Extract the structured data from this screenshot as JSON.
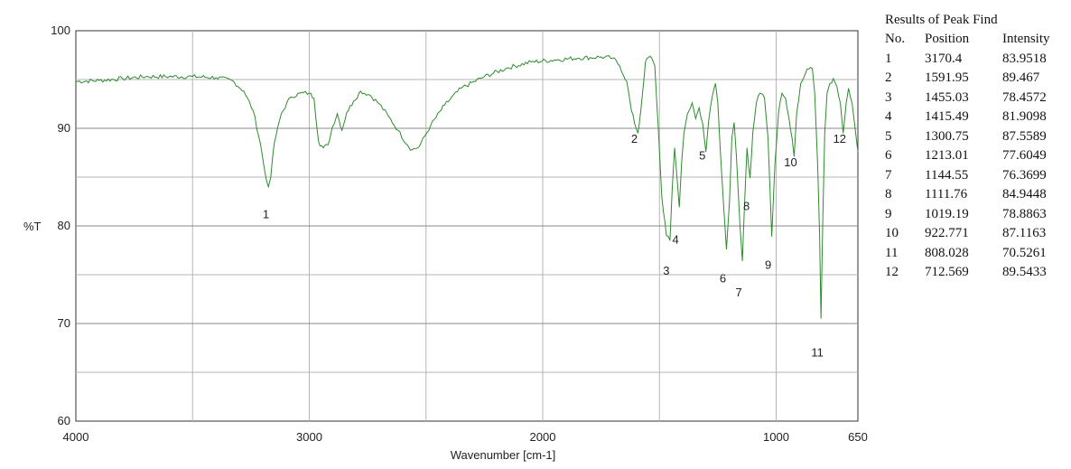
{
  "chart_data": {
    "type": "line",
    "ylabel": "%T",
    "xlabel": "Wavenumber [cm-1]",
    "xlim": [
      4000,
      650
    ],
    "ylim": [
      60,
      100
    ],
    "x_ticks": [
      4000,
      3000,
      2000,
      1000,
      650
    ],
    "y_ticks": [
      60,
      70,
      80,
      90,
      100
    ],
    "grid": true,
    "series": [
      {
        "color": "#2e8b2e",
        "points": [
          [
            4000,
            94.8
          ],
          [
            3900,
            94.9
          ],
          [
            3800,
            95.1
          ],
          [
            3700,
            95.3
          ],
          [
            3600,
            95.3
          ],
          [
            3500,
            95.3
          ],
          [
            3400,
            95.2
          ],
          [
            3330,
            94.9
          ],
          [
            3280,
            93.8
          ],
          [
            3240,
            91.8
          ],
          [
            3210,
            88.5
          ],
          [
            3190,
            85.5
          ],
          [
            3175,
            84.0
          ],
          [
            3165,
            85.0
          ],
          [
            3150,
            88.5
          ],
          [
            3120,
            91.5
          ],
          [
            3080,
            93.2
          ],
          [
            3040,
            93.6
          ],
          [
            3000,
            93.6
          ],
          [
            2980,
            93.1
          ],
          [
            2960,
            88.6
          ],
          [
            2940,
            88.0
          ],
          [
            2920,
            88.3
          ],
          [
            2900,
            90.2
          ],
          [
            2880,
            91.5
          ],
          [
            2860,
            89.8
          ],
          [
            2840,
            91.6
          ],
          [
            2810,
            92.8
          ],
          [
            2780,
            93.8
          ],
          [
            2740,
            93.4
          ],
          [
            2700,
            92.5
          ],
          [
            2660,
            91.2
          ],
          [
            2620,
            89.8
          ],
          [
            2580,
            88.3
          ],
          [
            2560,
            87.8
          ],
          [
            2530,
            88.1
          ],
          [
            2480,
            90.3
          ],
          [
            2420,
            92.4
          ],
          [
            2350,
            94.1
          ],
          [
            2250,
            95.3
          ],
          [
            2150,
            96.2
          ],
          [
            2050,
            96.8
          ],
          [
            1950,
            97.0
          ],
          [
            1850,
            97.2
          ],
          [
            1750,
            97.3
          ],
          [
            1700,
            97.2
          ],
          [
            1670,
            96.4
          ],
          [
            1640,
            94.8
          ],
          [
            1620,
            91.8
          ],
          [
            1600,
            90.0
          ],
          [
            1592,
            89.5
          ],
          [
            1580,
            91.8
          ],
          [
            1560,
            96.8
          ],
          [
            1540,
            97.4
          ],
          [
            1520,
            96.4
          ],
          [
            1505,
            90.0
          ],
          [
            1490,
            83.0
          ],
          [
            1470,
            79.0
          ],
          [
            1455,
            78.5
          ],
          [
            1445,
            84.0
          ],
          [
            1435,
            88.0
          ],
          [
            1425,
            85.0
          ],
          [
            1415,
            81.9
          ],
          [
            1405,
            86.5
          ],
          [
            1395,
            89.5
          ],
          [
            1380,
            91.5
          ],
          [
            1360,
            92.6
          ],
          [
            1345,
            91.0
          ],
          [
            1330,
            92.1
          ],
          [
            1315,
            90.5
          ],
          [
            1301,
            87.6
          ],
          [
            1290,
            90.6
          ],
          [
            1275,
            93.1
          ],
          [
            1260,
            94.6
          ],
          [
            1250,
            92.6
          ],
          [
            1240,
            88.0
          ],
          [
            1225,
            82.0
          ],
          [
            1213,
            77.6
          ],
          [
            1200,
            82.5
          ],
          [
            1190,
            89.0
          ],
          [
            1180,
            90.6
          ],
          [
            1170,
            87.0
          ],
          [
            1155,
            80.0
          ],
          [
            1145,
            76.4
          ],
          [
            1135,
            82.5
          ],
          [
            1125,
            88.0
          ],
          [
            1112,
            84.9
          ],
          [
            1100,
            89.6
          ],
          [
            1085,
            92.6
          ],
          [
            1070,
            93.6
          ],
          [
            1050,
            93.1
          ],
          [
            1035,
            89.0
          ],
          [
            1019,
            78.9
          ],
          [
            1005,
            86.5
          ],
          [
            990,
            91.6
          ],
          [
            975,
            93.6
          ],
          [
            960,
            93.1
          ],
          [
            945,
            91.0
          ],
          [
            932,
            89.0
          ],
          [
            923,
            87.1
          ],
          [
            912,
            91.6
          ],
          [
            895,
            94.6
          ],
          [
            875,
            95.6
          ],
          [
            860,
            96.1
          ],
          [
            845,
            96.1
          ],
          [
            835,
            93.6
          ],
          [
            822,
            86.0
          ],
          [
            814,
            79.0
          ],
          [
            808,
            70.5
          ],
          [
            800,
            81.0
          ],
          [
            792,
            89.5
          ],
          [
            782,
            93.6
          ],
          [
            770,
            94.6
          ],
          [
            755,
            95.1
          ],
          [
            740,
            94.3
          ],
          [
            725,
            92.6
          ],
          [
            713,
            89.5
          ],
          [
            700,
            92.6
          ],
          [
            690,
            94.1
          ],
          [
            675,
            92.6
          ],
          [
            660,
            89.6
          ],
          [
            650,
            87.6
          ]
        ]
      }
    ],
    "peak_labels": [
      {
        "label": "1",
        "x": 3170.4,
        "y": 80.8
      },
      {
        "label": "2",
        "x": 1591.95,
        "y": 88.5
      },
      {
        "label": "3",
        "x": 1455.03,
        "y": 75.0
      },
      {
        "label": "4",
        "x": 1415.49,
        "y": 78.2
      },
      {
        "label": "5",
        "x": 1300.75,
        "y": 86.8
      },
      {
        "label": "6",
        "x": 1213.01,
        "y": 74.2
      },
      {
        "label": "7",
        "x": 1144.55,
        "y": 72.8
      },
      {
        "label": "8",
        "x": 1111.76,
        "y": 81.6
      },
      {
        "label": "9",
        "x": 1019.19,
        "y": 75.6
      },
      {
        "label": "10",
        "x": 922.771,
        "y": 86.1
      },
      {
        "label": "11",
        "x": 808.028,
        "y": 66.6
      },
      {
        "label": "12",
        "x": 712.569,
        "y": 88.5
      }
    ]
  },
  "peak_table": {
    "title": "Results of Peak Find",
    "headers": [
      "No.",
      "Position",
      "Intensity"
    ],
    "rows": [
      [
        "1",
        "3170.4",
        "83.9518"
      ],
      [
        "2",
        "1591.95",
        "89.467"
      ],
      [
        "3",
        "1455.03",
        "78.4572"
      ],
      [
        "4",
        "1415.49",
        "81.9098"
      ],
      [
        "5",
        "1300.75",
        "87.5589"
      ],
      [
        "6",
        "1213.01",
        "77.6049"
      ],
      [
        "7",
        "1144.55",
        "76.3699"
      ],
      [
        "8",
        "1111.76",
        "84.9448"
      ],
      [
        "9",
        "1019.19",
        "78.8863"
      ],
      [
        "10",
        "922.771",
        "87.1163"
      ],
      [
        "11",
        "808.028",
        "70.5261"
      ],
      [
        "12",
        "712.569",
        "89.5433"
      ]
    ]
  }
}
